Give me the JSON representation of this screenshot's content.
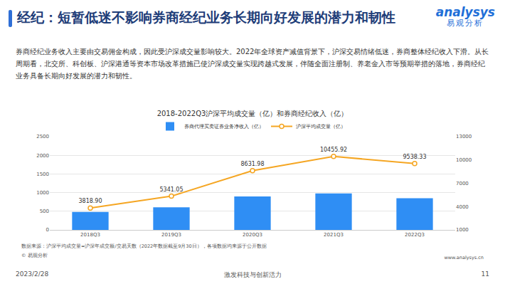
{
  "header": {
    "title": "经纪：短暂低迷不影响券商经纪业务长期向好发展的潜力和韧性",
    "logo": "analysys",
    "logo_sub": "易观分析"
  },
  "paragraph": "券商经纪业务收入主要由交易佣金构成，因此受沪深成交量影响较大。2022年全球资产减值背景下，沪深交易情绪低迷，券商整体经纪收入下滑。从长周期看，北交所、科创板、沪深港通等资本市场改革措施已使沪深成交量实现跨越式发展，伴随全面注册制、养老金入市等预期举措的落地，券商经纪业务具备长期向好发展的潜力和韧性。",
  "chart_data": {
    "type": "bar",
    "title": "2018-2022Q3沪深平均成交量（亿）和券商经纪收入（亿）",
    "categories": [
      "2018Q3",
      "2019Q3",
      "2020Q3",
      "2021Q3",
      "2022Q3"
    ],
    "series": [
      {
        "name": "券商代理买卖证券业务净收入（亿）",
        "type": "bar",
        "color": "#2f8ef4",
        "values": [
          480,
          608,
          896,
          976,
          848
        ]
      },
      {
        "name": "沪深平均成交量（亿）",
        "type": "line",
        "color": "#f5a623",
        "axis": "y2",
        "marker": "circle",
        "data_labels": true,
        "values": [
          3818.9,
          5341.05,
          8631.98,
          10455.92,
          9538.33
        ],
        "value_labels": [
          "3818.90",
          "5341.05",
          "8631.98",
          "10455.92",
          "9538.33"
        ]
      }
    ],
    "ylim": [
      0,
      2500
    ],
    "yticks": [
      0,
      500,
      1000,
      1500,
      2000,
      2500
    ],
    "y2lim": [
      1000,
      13000
    ],
    "y2ticks": [
      1000,
      4000,
      7000,
      10000,
      13000
    ],
    "grid": true,
    "legend": "top"
  },
  "notes": {
    "source": "数据来源：沪深平均成交量=沪深年成交额/交易天数（2022年数据截至9月30日），各项数据均来源于公开数据",
    "copyright": "© 易观分析"
  },
  "footer": {
    "date": "2023/2/28",
    "slogan": "激发科技与创新活力",
    "page": "11",
    "url": "www.analysys.cn"
  }
}
